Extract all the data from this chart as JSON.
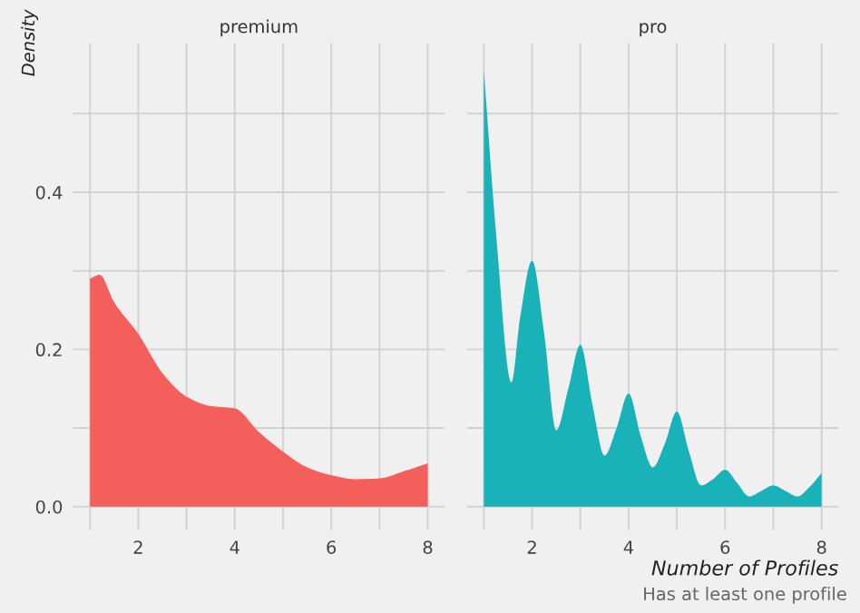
{
  "chart_data": [
    {
      "type": "area",
      "title": "premium",
      "ylabel": "Density",
      "x": [
        1,
        1.2,
        1.5,
        2,
        2.5,
        3,
        3.5,
        4,
        4.5,
        5,
        5.5,
        6,
        6.5,
        7,
        7.5,
        8
      ],
      "series": [
        {
          "color": "#f45f5b",
          "values": [
            0.29,
            0.295,
            0.26,
            0.22,
            0.17,
            0.14,
            0.128,
            0.125,
            0.095,
            0.07,
            0.05,
            0.04,
            0.035,
            0.036,
            0.045,
            0.055
          ]
        }
      ],
      "xlim": [
        0.65,
        8.35
      ],
      "ylim": [
        -0.03,
        0.59
      ],
      "xticks": [
        {
          "value": 1,
          "label": null
        },
        2,
        {
          "value": 3,
          "label": null
        },
        4,
        {
          "value": 5,
          "label": null
        },
        6,
        {
          "value": 7,
          "label": null
        },
        8
      ],
      "yticks": [
        {
          "value": 0,
          "label": "0.0"
        },
        {
          "value": 0.1,
          "label": null
        },
        0.2,
        {
          "value": 0.3,
          "label": null
        },
        0.4,
        {
          "value": 0.5,
          "label": null
        }
      ],
      "grid": true
    },
    {
      "type": "area",
      "title": "pro",
      "xlabel": "Number of Profiles",
      "annotations": [
        "Has at least one profile"
      ],
      "x": [
        1,
        1.25,
        1.57,
        1.75,
        2,
        2.25,
        2.5,
        2.75,
        3,
        3.25,
        3.5,
        3.75,
        4,
        4.25,
        4.5,
        4.75,
        5,
        5.25,
        5.5,
        5.75,
        6,
        6.25,
        6.5,
        6.75,
        7,
        7.25,
        7.5,
        7.75,
        8
      ],
      "series": [
        {
          "color": "#19b2b8",
          "values": [
            0.556,
            0.35,
            0.158,
            0.24,
            0.313,
            0.22,
            0.097,
            0.15,
            0.206,
            0.13,
            0.065,
            0.1,
            0.144,
            0.09,
            0.05,
            0.08,
            0.121,
            0.07,
            0.027,
            0.035,
            0.047,
            0.03,
            0.013,
            0.02,
            0.027,
            0.02,
            0.013,
            0.025,
            0.043
          ]
        }
      ],
      "xlim": [
        0.65,
        8.35
      ],
      "ylim": [
        -0.03,
        0.59
      ],
      "xticks": [
        {
          "value": 1,
          "label": null
        },
        2,
        {
          "value": 3,
          "label": null
        },
        4,
        {
          "value": 5,
          "label": null
        },
        6,
        {
          "value": 7,
          "label": null
        },
        8
      ],
      "yticks": [
        0,
        0.1,
        0.2,
        0.3,
        0.4,
        0.5
      ],
      "grid": true,
      "tick_labels": "x"
    }
  ]
}
